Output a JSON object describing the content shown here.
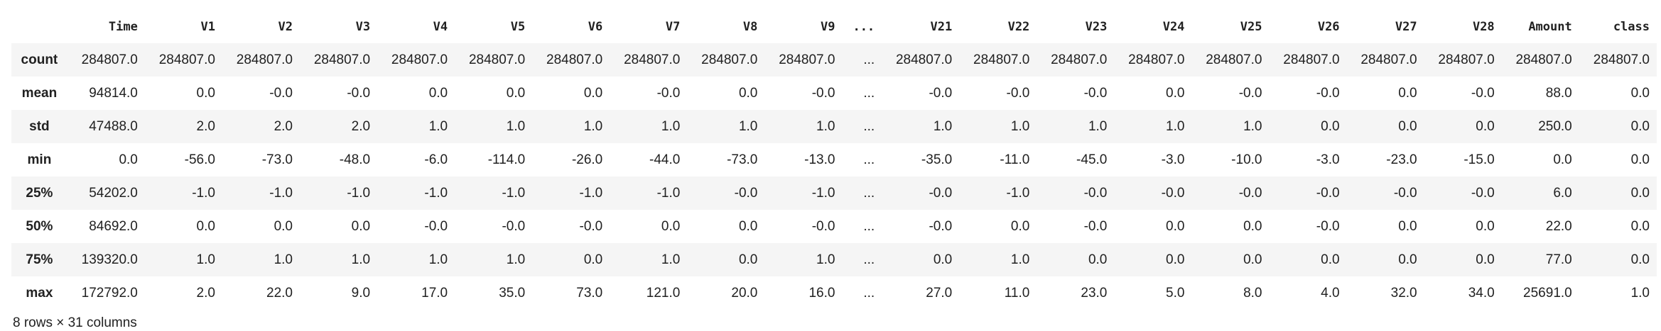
{
  "table": {
    "columns": [
      "Time",
      "V1",
      "V2",
      "V3",
      "V4",
      "V5",
      "V6",
      "V7",
      "V8",
      "V9",
      "...",
      "V21",
      "V22",
      "V23",
      "V24",
      "V25",
      "V26",
      "V27",
      "V28",
      "Amount",
      "class"
    ],
    "rows": [
      {
        "label": "count",
        "cells": [
          "284807.0",
          "284807.0",
          "284807.0",
          "284807.0",
          "284807.0",
          "284807.0",
          "284807.0",
          "284807.0",
          "284807.0",
          "284807.0",
          "...",
          "284807.0",
          "284807.0",
          "284807.0",
          "284807.0",
          "284807.0",
          "284807.0",
          "284807.0",
          "284807.0",
          "284807.0",
          "284807.0"
        ]
      },
      {
        "label": "mean",
        "cells": [
          "94814.0",
          "0.0",
          "-0.0",
          "-0.0",
          "0.0",
          "0.0",
          "0.0",
          "-0.0",
          "0.0",
          "-0.0",
          "...",
          "-0.0",
          "-0.0",
          "-0.0",
          "0.0",
          "-0.0",
          "-0.0",
          "0.0",
          "-0.0",
          "88.0",
          "0.0"
        ]
      },
      {
        "label": "std",
        "cells": [
          "47488.0",
          "2.0",
          "2.0",
          "2.0",
          "1.0",
          "1.0",
          "1.0",
          "1.0",
          "1.0",
          "1.0",
          "...",
          "1.0",
          "1.0",
          "1.0",
          "1.0",
          "1.0",
          "0.0",
          "0.0",
          "0.0",
          "250.0",
          "0.0"
        ]
      },
      {
        "label": "min",
        "cells": [
          "0.0",
          "-56.0",
          "-73.0",
          "-48.0",
          "-6.0",
          "-114.0",
          "-26.0",
          "-44.0",
          "-73.0",
          "-13.0",
          "...",
          "-35.0",
          "-11.0",
          "-45.0",
          "-3.0",
          "-10.0",
          "-3.0",
          "-23.0",
          "-15.0",
          "0.0",
          "0.0"
        ]
      },
      {
        "label": "25%",
        "cells": [
          "54202.0",
          "-1.0",
          "-1.0",
          "-1.0",
          "-1.0",
          "-1.0",
          "-1.0",
          "-1.0",
          "-0.0",
          "-1.0",
          "...",
          "-0.0",
          "-1.0",
          "-0.0",
          "-0.0",
          "-0.0",
          "-0.0",
          "-0.0",
          "-0.0",
          "6.0",
          "0.0"
        ]
      },
      {
        "label": "50%",
        "cells": [
          "84692.0",
          "0.0",
          "0.0",
          "0.0",
          "-0.0",
          "-0.0",
          "-0.0",
          "0.0",
          "0.0",
          "-0.0",
          "...",
          "-0.0",
          "0.0",
          "-0.0",
          "0.0",
          "0.0",
          "-0.0",
          "0.0",
          "0.0",
          "22.0",
          "0.0"
        ]
      },
      {
        "label": "75%",
        "cells": [
          "139320.0",
          "1.0",
          "1.0",
          "1.0",
          "1.0",
          "1.0",
          "0.0",
          "1.0",
          "0.0",
          "1.0",
          "...",
          "0.0",
          "1.0",
          "0.0",
          "0.0",
          "0.0",
          "0.0",
          "0.0",
          "0.0",
          "77.0",
          "0.0"
        ]
      },
      {
        "label": "max",
        "cells": [
          "172792.0",
          "2.0",
          "22.0",
          "9.0",
          "17.0",
          "35.0",
          "73.0",
          "121.0",
          "20.0",
          "16.0",
          "...",
          "27.0",
          "11.0",
          "23.0",
          "5.0",
          "8.0",
          "4.0",
          "32.0",
          "34.0",
          "25691.0",
          "1.0"
        ]
      }
    ],
    "footer": "8 rows × 31 columns"
  }
}
